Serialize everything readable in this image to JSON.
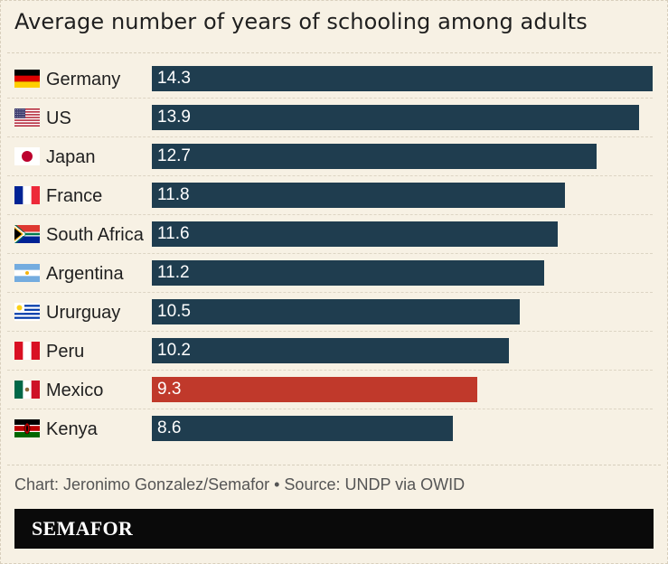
{
  "chart_data": {
    "type": "bar",
    "orientation": "horizontal",
    "title": "Average number of years of schooling among adults",
    "categories": [
      "Germany",
      "US",
      "Japan",
      "France",
      "South Africa",
      "Argentina",
      "Ururguay",
      "Peru",
      "Mexico",
      "Kenya"
    ],
    "values": [
      14.3,
      13.9,
      12.7,
      11.8,
      11.6,
      11.2,
      10.5,
      10.2,
      9.3,
      8.6
    ],
    "value_labels": [
      "14.3",
      "13.9",
      "12.7",
      "11.8",
      "11.6",
      "11.2",
      "10.5",
      "10.2",
      "9.3",
      "8.6"
    ],
    "xlim": [
      0,
      14.3
    ],
    "highlight": "Mexico",
    "colors": {
      "default": "#1f3d4f",
      "highlight": "#c0392b"
    },
    "flag_icons": [
      "germany-flag-icon",
      "us-flag-icon",
      "japan-flag-icon",
      "france-flag-icon",
      "south-africa-flag-icon",
      "argentina-flag-icon",
      "uruguay-flag-icon",
      "peru-flag-icon",
      "mexico-flag-icon",
      "kenya-flag-icon"
    ]
  },
  "source": "Chart: Jeronimo Gonzalez/Semafor • Source: UNDP via OWID",
  "logo": "SEMAFOR",
  "background": "#f7f1e4"
}
